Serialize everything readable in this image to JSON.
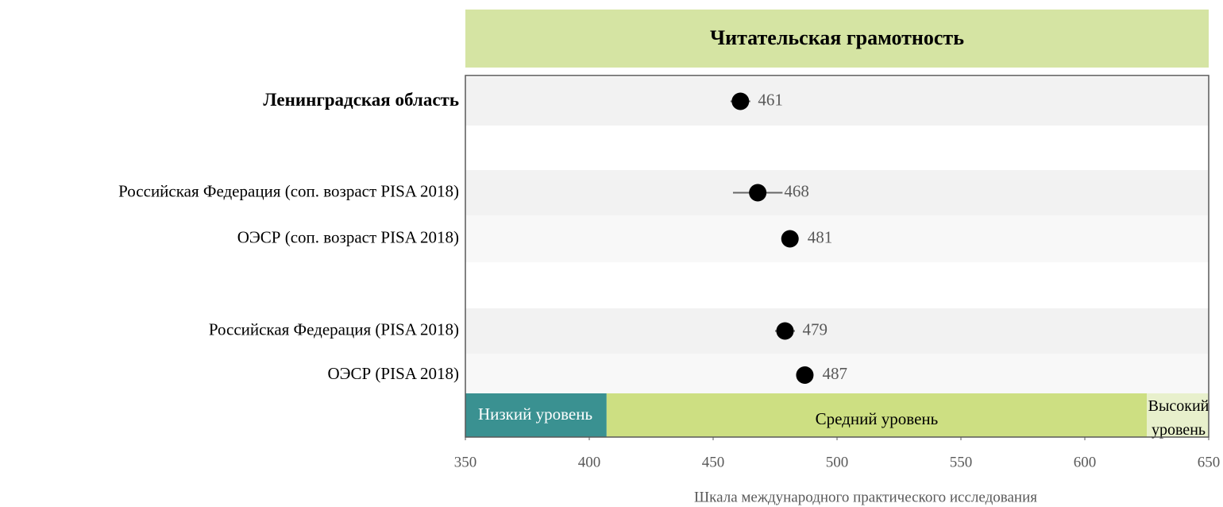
{
  "chart_data": {
    "type": "dot",
    "title": "Читательская грамотность",
    "x_label": "Шкала международного практического исследования",
    "categories": [
      "Ленинградская область",
      null,
      "Российская Федерация (соп. возраст PISA 2018)",
      "ОЭСР (соп. возраст PISA 2018)",
      null,
      "Российская Федерация (PISA 2018)",
      "ОЭСР (PISA 2018)"
    ],
    "values": [
      461,
      null,
      468,
      481,
      null,
      479,
      487
    ],
    "errors": [
      4,
      null,
      10,
      2,
      null,
      4,
      2
    ],
    "color": "#000000",
    "error_color": "#666666",
    "xlim": [
      350,
      650
    ],
    "xticks": [
      350,
      400,
      450,
      500,
      550,
      600,
      650
    ],
    "grid": false,
    "bands": [
      {
        "label": "Низкий уровень",
        "from": 350,
        "to": 407,
        "color": "#3a9191"
      },
      {
        "label": "Средний уровень",
        "from": 407,
        "to": 625,
        "color": "#cddf82"
      },
      {
        "label": "Высокий уровень",
        "from": 625,
        "to": 650,
        "color": "#e8f0cc"
      }
    ]
  }
}
